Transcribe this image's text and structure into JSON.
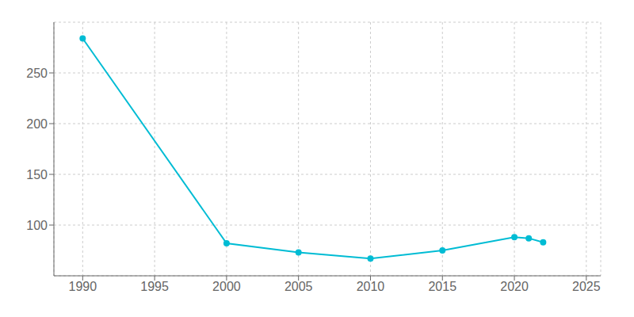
{
  "chart_data": {
    "type": "line",
    "x": [
      1990,
      2000,
      2005,
      2010,
      2015,
      2020,
      2021,
      2022
    ],
    "values": [
      284,
      82,
      73,
      67,
      75,
      88,
      87,
      83
    ],
    "color": "#00bcd4",
    "marker": "circle",
    "xlim": [
      1988,
      2026
    ],
    "xticks": [
      1990,
      1995,
      2000,
      2005,
      2010,
      2015,
      2020,
      2025
    ],
    "ylim": [
      50,
      300
    ],
    "yticks": [
      100,
      150,
      200,
      250
    ],
    "grid": true
  }
}
